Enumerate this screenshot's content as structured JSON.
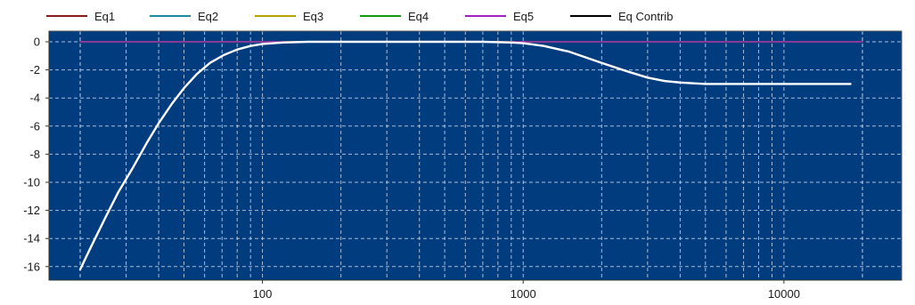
{
  "chart_data": {
    "type": "line",
    "title": "",
    "xlabel": "",
    "ylabel": "",
    "x_scale": "log",
    "xlim": [
      20,
      20000
    ],
    "ylim": [
      -17,
      0.5
    ],
    "grid": true,
    "legend_position": "top",
    "background_color": "#003c7e",
    "x_tick_labels": [
      {
        "value": 100,
        "label": "100"
      },
      {
        "value": 1000,
        "label": "1000"
      },
      {
        "value": 10000,
        "label": "10000"
      }
    ],
    "y_tick_labels": [
      {
        "value": 0,
        "label": "0"
      },
      {
        "value": -2,
        "label": "-2"
      },
      {
        "value": -4,
        "label": "-4"
      },
      {
        "value": -6,
        "label": "-6"
      },
      {
        "value": -8,
        "label": "-8"
      },
      {
        "value": -10,
        "label": "-10"
      },
      {
        "value": -12,
        "label": "-12"
      },
      {
        "value": -14,
        "label": "-14"
      },
      {
        "value": -16,
        "label": "-16"
      }
    ],
    "series": [
      {
        "name": "Eq1",
        "color": "#8b1a1a",
        "x": [
          20,
          20000
        ],
        "y": [
          0,
          0
        ]
      },
      {
        "name": "Eq2",
        "color": "#1f8a9a",
        "x": [
          20,
          20000
        ],
        "y": [
          0,
          0
        ]
      },
      {
        "name": "Eq3",
        "color": "#b8a000",
        "x": [
          20,
          20000
        ],
        "y": [
          0,
          0
        ]
      },
      {
        "name": "Eq4",
        "color": "#119a11",
        "x": [
          20,
          20000
        ],
        "y": [
          0,
          0
        ]
      },
      {
        "name": "Eq5",
        "color": "#a020c0",
        "x": [
          20,
          20000
        ],
        "y": [
          0,
          0
        ]
      },
      {
        "name": "Eq Contrib",
        "color": "#000000",
        "plot_color": "#ffffff",
        "x": [
          20,
          22,
          25,
          28,
          32,
          36,
          40,
          45,
          50,
          56,
          63,
          71,
          80,
          90,
          100,
          120,
          150,
          200,
          300,
          500,
          700,
          900,
          1000,
          1200,
          1500,
          2000,
          2500,
          3000,
          3500,
          4000,
          5000,
          7000,
          10000,
          15000,
          18000
        ],
        "y": [
          -16.2,
          -14.6,
          -12.5,
          -10.7,
          -8.9,
          -7.2,
          -5.8,
          -4.4,
          -3.3,
          -2.3,
          -1.5,
          -0.95,
          -0.55,
          -0.3,
          -0.15,
          -0.05,
          0,
          0,
          0,
          0,
          0,
          -0.05,
          -0.1,
          -0.3,
          -0.7,
          -1.5,
          -2.1,
          -2.55,
          -2.8,
          -2.9,
          -3.0,
          -3.0,
          -3.0,
          -3.0,
          -3.0
        ]
      }
    ]
  }
}
